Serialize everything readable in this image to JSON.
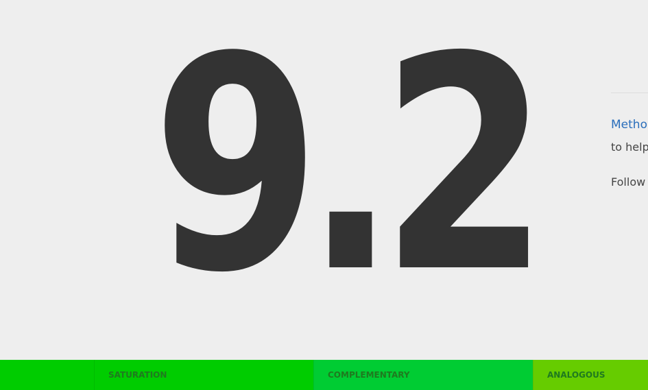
{
  "main": {
    "score": "9.2"
  },
  "side": {
    "link_label": "Methoc",
    "line1": "to help",
    "line2": "Follow"
  },
  "colors": {
    "background": "#eeeeee",
    "score_text": "#333333",
    "link": "#2a6ebb",
    "bar_lead": "#00cc00",
    "saturation": "#00cc00",
    "complementary": "#00cc33",
    "analogous": "#66cc00"
  },
  "bottom_bar": {
    "tabs": [
      {
        "label": "SATURATION"
      },
      {
        "label": "COMPLEMENTARY"
      },
      {
        "label": "ANALOGOUS"
      }
    ]
  }
}
